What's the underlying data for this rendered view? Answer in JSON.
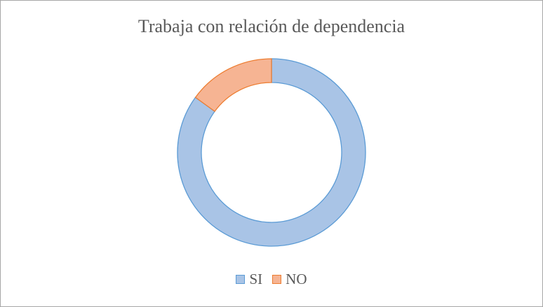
{
  "chart_data": {
    "type": "pie",
    "title": "Trabaja  con relación  de dependencia",
    "categories": [
      "SI",
      "NO"
    ],
    "values": [
      85,
      15
    ],
    "colors": [
      "#a9c4e6",
      "#f6b493"
    ],
    "strokes": [
      "#5b9bd5",
      "#ed7d31"
    ],
    "legend": "bottom"
  }
}
